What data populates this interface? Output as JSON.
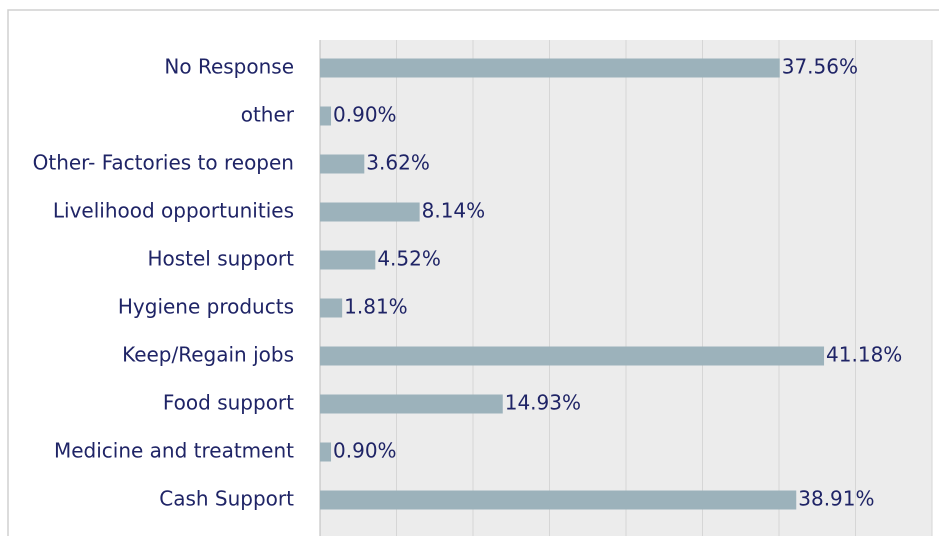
{
  "chart_data": {
    "type": "bar",
    "orientation": "horizontal",
    "categories": [
      "No Response",
      "other",
      "Other- Factories to reopen",
      "Livelihood opportunities",
      "Hostel support",
      "Hygiene products",
      "Keep/Regain jobs",
      "Food support",
      "Medicine and treatment",
      "Cash Support"
    ],
    "values": [
      37.56,
      0.9,
      3.62,
      8.14,
      4.52,
      1.81,
      41.18,
      14.93,
      0.9,
      38.91
    ],
    "value_labels": [
      "37.56%",
      "0.90%",
      "3.62%",
      "8.14%",
      "4.52%",
      "1.81%",
      "41.18%",
      "14.93%",
      "0.90%",
      "38.91%"
    ],
    "color": "#9cb2bb",
    "xlim": [
      0,
      50
    ],
    "xticks": [
      0,
      6.25,
      12.5,
      18.75,
      25,
      31.25,
      37.5,
      43.75,
      50
    ],
    "grid": true
  }
}
